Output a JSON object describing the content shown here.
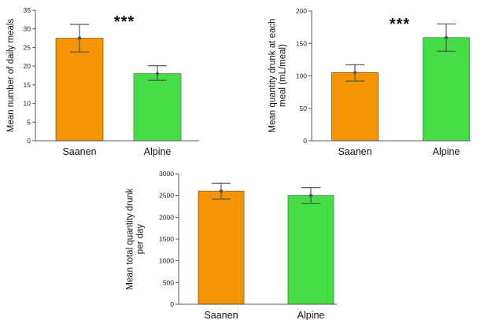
{
  "chart_data": [
    {
      "type": "bar",
      "ylabel": [
        "Mean number of daily meals"
      ],
      "categories": [
        "Saanen",
        "Alpine"
      ],
      "values": [
        27.5,
        18.0
      ],
      "error_low": [
        23.8,
        16.2
      ],
      "error_high": [
        31.2,
        20.1
      ],
      "ylim": [
        0,
        35
      ],
      "yticks": [
        0,
        5,
        10,
        15,
        20,
        25,
        30,
        35
      ],
      "annotation": "***",
      "colors": [
        "#f59506",
        "#45dc48"
      ]
    },
    {
      "type": "bar",
      "ylabel": [
        "Mean quantity drunk at each",
        "meal (mL/meal)"
      ],
      "categories": [
        "Saanen",
        "Alpine"
      ],
      "values": [
        105,
        159
      ],
      "error_low": [
        92,
        138
      ],
      "error_high": [
        117,
        180
      ],
      "ylim": [
        0,
        200
      ],
      "yticks": [
        0,
        50,
        100,
        150,
        200
      ],
      "annotation": "***",
      "colors": [
        "#f59506",
        "#45dc48"
      ]
    },
    {
      "type": "bar",
      "ylabel": [
        "Mean total quantity drunk",
        "per day"
      ],
      "categories": [
        "Saanen",
        "Alpine"
      ],
      "values": [
        2600,
        2500
      ],
      "error_low": [
        2420,
        2320
      ],
      "error_high": [
        2780,
        2680
      ],
      "ylim": [
        0,
        3000
      ],
      "yticks": [
        0,
        500,
        1000,
        1500,
        2000,
        2500,
        3000
      ],
      "annotation": "",
      "colors": [
        "#f59506",
        "#45dc48"
      ]
    }
  ]
}
